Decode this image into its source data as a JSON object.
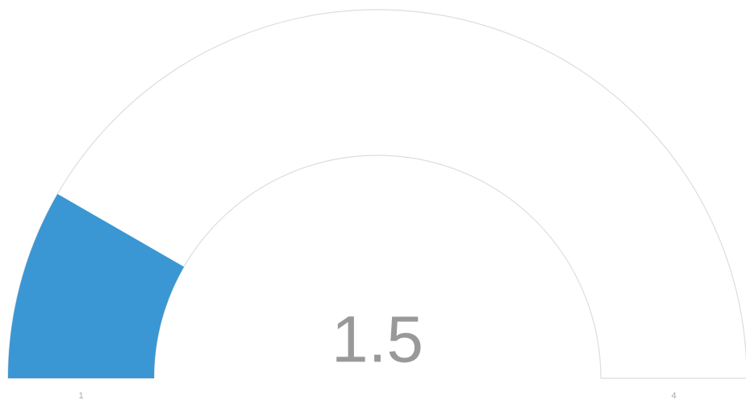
{
  "chart_data": {
    "type": "gauge",
    "value": 1.5,
    "color": "#3a97d3",
    "ylim": [
      1,
      4
    ],
    "yticks": [
      1,
      4
    ]
  }
}
